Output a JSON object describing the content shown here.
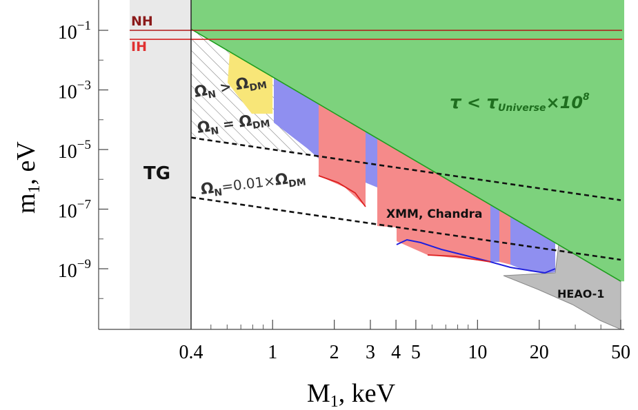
{
  "chart_data": {
    "type": "area",
    "title": "",
    "xlabel": "M",
    "xlabel_sub": "1",
    "xlabel_unit": ", keV",
    "ylabel": "m",
    "ylabel_sub": "1",
    "ylabel_unit": ", eV",
    "x_scale": "log",
    "y_scale": "log",
    "xlim": [
      0.2,
      50
    ],
    "ylim": [
      1e-11,
      1
    ],
    "x_ticks": [
      {
        "value": 0.4,
        "label": "0.4"
      },
      {
        "value": 1,
        "label": "1"
      },
      {
        "value": 2,
        "label": "2"
      },
      {
        "value": 3,
        "label": "3"
      },
      {
        "value": 4,
        "label": "4"
      },
      {
        "value": 5,
        "label": "5"
      },
      {
        "value": 10,
        "label": "10"
      },
      {
        "value": 20,
        "label": "20"
      },
      {
        "value": 50,
        "label": "50"
      }
    ],
    "y_ticks": [
      {
        "value": 0.1,
        "mant": "10",
        "exp": "−1"
      },
      {
        "value": 0.001,
        "mant": "10",
        "exp": "−3"
      },
      {
        "value": 1e-05,
        "mant": "10",
        "exp": "−5"
      },
      {
        "value": 1e-07,
        "mant": "10",
        "exp": "−7"
      },
      {
        "value": 1e-09,
        "mant": "10",
        "exp": "−9"
      }
    ],
    "regions": {
      "tg": {
        "label": "TG",
        "x_max": 0.4,
        "color": "#e9e9e9"
      },
      "lifetime": {
        "label_tau": "τ",
        "label_lt": " < ",
        "label_tau2": "τ",
        "label_sub": "Universe",
        "label_times": "×10",
        "label_exp": "8",
        "color": "#7dd27d",
        "edge": "#1e9e1e",
        "boundary": [
          [
            0.4,
            0.11
          ],
          [
            50,
            3.8e-10
          ]
        ]
      },
      "overproduction": {
        "label_omega": "Ω",
        "label_sub_n": "N",
        "label_rel": " > ",
        "label_omega2": "Ω",
        "label_sub_dm": "DM"
      }
    },
    "lines": [
      {
        "name": "NH",
        "y": 0.1,
        "color": "#b01818",
        "label_color": "#8b1a1a"
      },
      {
        "name": "IH",
        "y": 0.05,
        "color": "#d62020",
        "label_color": "#e03030"
      }
    ],
    "dm_lines": [
      {
        "label_omega": "Ω",
        "label_sub_n": "N",
        "label_mid": " = ",
        "label_omega2": "Ω",
        "label_sub_dm": "DM",
        "points": [
          [
            0.4,
            2.5e-05
          ],
          [
            50,
            2e-07
          ]
        ]
      },
      {
        "label_omega": "Ω",
        "label_sub_n": "N",
        "label_mid": "=0.01×",
        "label_omega2": "Ω",
        "label_sub_dm": "DM",
        "points": [
          [
            0.4,
            2.5e-07
          ],
          [
            50,
            2e-09
          ]
        ]
      }
    ],
    "constraints": {
      "xmm_label": "XMM, Chandra",
      "heao_label": "HEAO-1",
      "yellow": {
        "color": "#f8e678",
        "x_range": [
          0.62,
          1.0
        ]
      },
      "blue": {
        "color": "#8f8ff0",
        "edge": "#1f1fdd"
      },
      "red": {
        "color": "#f58a8a",
        "edge": "#dd1f1f"
      },
      "gray": {
        "color": "#bdbdbd",
        "edge": "#888888"
      }
    }
  }
}
